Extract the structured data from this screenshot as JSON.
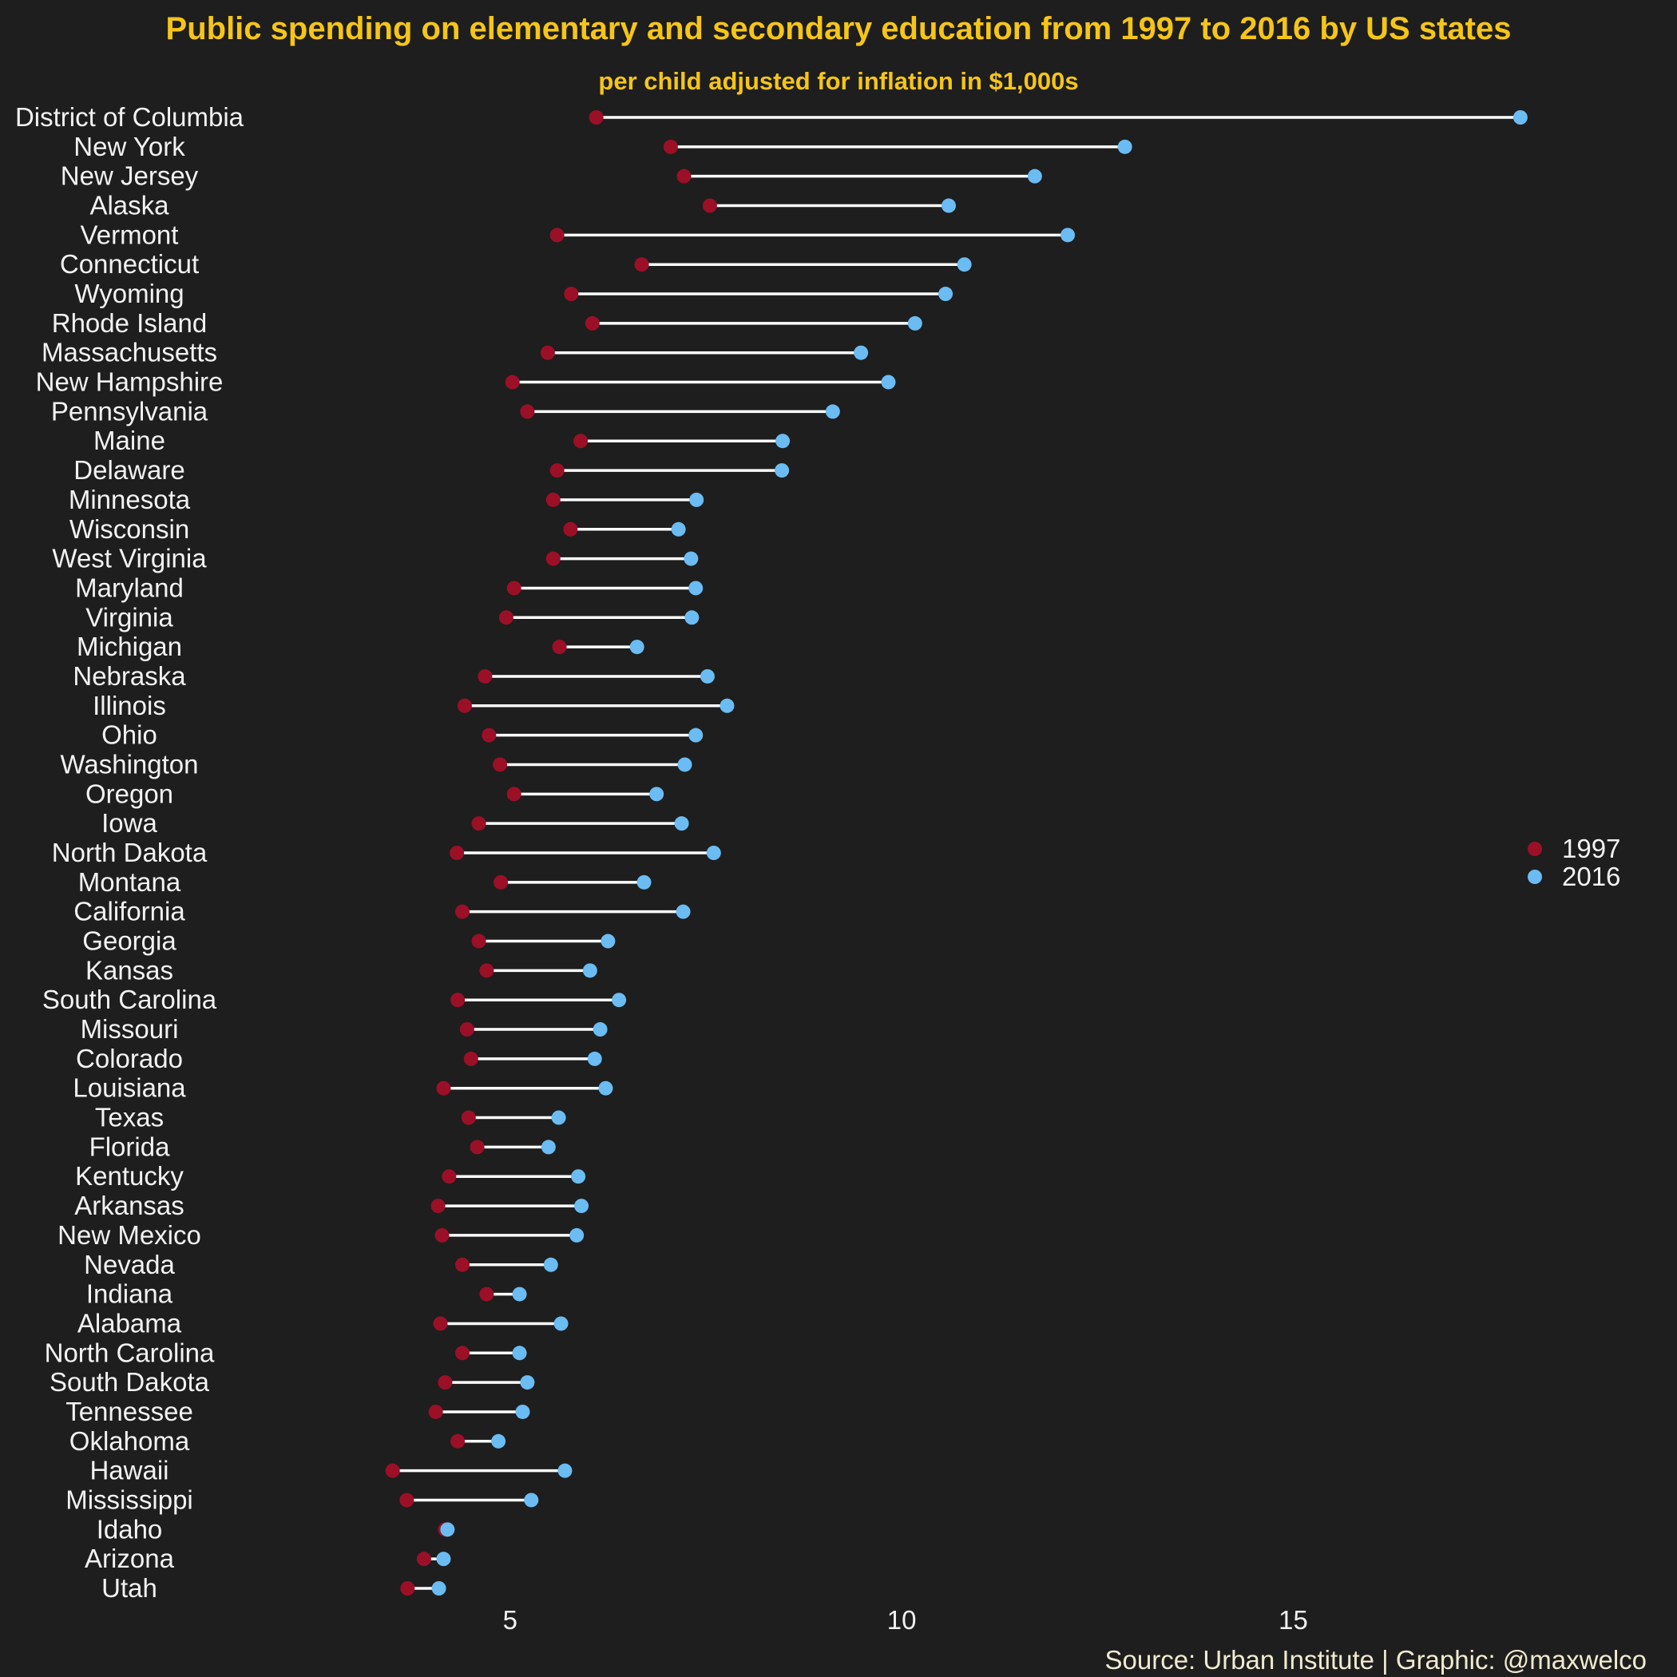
{
  "chart_data": {
    "type": "dumbbell",
    "title": "Public spending on elementary and secondary education from 1997 to 2016 by US states",
    "subtitle": "per child adjusted for inflation in $1,000s",
    "caption": "Source: Urban Institute | Graphic: @maxwelco",
    "xlabel": "",
    "ylabel": "",
    "xlim": [
      1.8,
      19.9
    ],
    "xticks": [
      5,
      10,
      15
    ],
    "grid": false,
    "legend_position": "right",
    "series": [
      {
        "name": "1997",
        "color": "#9b1027"
      },
      {
        "name": "2016",
        "color": "#6bbcf2"
      }
    ],
    "categories": [
      "District of Columbia",
      "New York",
      "New Jersey",
      "Alaska",
      "Vermont",
      "Connecticut",
      "Wyoming",
      "Rhode Island",
      "Massachusetts",
      "New Hampshire",
      "Pennsylvania",
      "Maine",
      "Delaware",
      "Minnesota",
      "Wisconsin",
      "West Virginia",
      "Maryland",
      "Virginia",
      "Michigan",
      "Nebraska",
      "Illinois",
      "Ohio",
      "Washington",
      "Oregon",
      "Iowa",
      "North Dakota",
      "Montana",
      "California",
      "Georgia",
      "Kansas",
      "South Carolina",
      "Missouri",
      "Colorado",
      "Louisiana",
      "Texas",
      "Florida",
      "Kentucky",
      "Arkansas",
      "New Mexico",
      "Nevada",
      "Indiana",
      "Alabama",
      "North Carolina",
      "South Dakota",
      "Tennessee",
      "Oklahoma",
      "Hawaii",
      "Mississippi",
      "Idaho",
      "Arizona",
      "Utah"
    ],
    "values_1997": [
      6.1,
      7.05,
      7.22,
      7.55,
      5.6,
      6.68,
      5.78,
      6.05,
      5.48,
      5.03,
      5.22,
      5.9,
      5.6,
      5.55,
      5.77,
      5.55,
      5.05,
      4.95,
      5.63,
      4.68,
      4.42,
      4.73,
      4.87,
      5.05,
      4.6,
      4.32,
      4.88,
      4.39,
      4.6,
      4.7,
      4.33,
      4.45,
      4.5,
      4.15,
      4.47,
      4.58,
      4.22,
      4.08,
      4.13,
      4.39,
      4.7,
      4.11,
      4.39,
      4.17,
      4.05,
      4.33,
      3.5,
      3.68,
      4.17,
      3.9,
      3.69
    ],
    "values_2016": [
      17.9,
      12.85,
      11.7,
      10.6,
      12.12,
      10.8,
      10.56,
      10.17,
      9.48,
      9.83,
      9.12,
      8.48,
      8.47,
      7.38,
      7.15,
      7.31,
      7.37,
      7.32,
      6.62,
      7.52,
      7.77,
      7.37,
      7.23,
      6.87,
      7.19,
      7.6,
      6.71,
      7.21,
      6.25,
      6.02,
      6.39,
      6.15,
      6.08,
      6.22,
      5.62,
      5.49,
      5.87,
      5.91,
      5.85,
      5.52,
      5.12,
      5.65,
      5.12,
      5.22,
      5.16,
      4.85,
      5.7,
      5.27,
      4.2,
      4.15,
      4.09
    ]
  }
}
